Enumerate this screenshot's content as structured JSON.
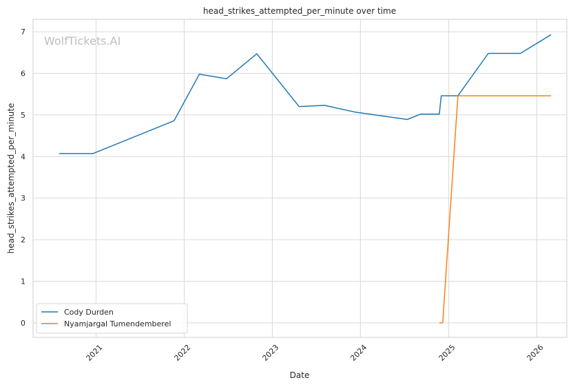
{
  "chart_data": {
    "type": "line",
    "title": "head_strikes_attempted_per_minute over time",
    "xlabel": "Date",
    "ylabel": "head_strikes_attempted_per_minute",
    "watermark": "WolfTickets.AI",
    "x_ticks": [
      "2021",
      "2022",
      "2023",
      "2024",
      "2025",
      "2026"
    ],
    "y_ticks": [
      "0",
      "1",
      "2",
      "3",
      "4",
      "5",
      "6",
      "7"
    ],
    "xlim": [
      "2020-04-15",
      "2026-05-05"
    ],
    "ylim": [
      -0.35,
      7.3
    ],
    "grid": true,
    "legend_position": "lower-left",
    "series": [
      {
        "name": "Cody Durden",
        "color": "#1f77b4",
        "points": [
          {
            "x": "2020-08-01",
            "y": 4.07
          },
          {
            "x": "2020-12-19",
            "y": 4.07
          },
          {
            "x": "2021-11-20",
            "y": 4.86
          },
          {
            "x": "2022-03-05",
            "y": 5.98
          },
          {
            "x": "2022-06-25",
            "y": 5.87
          },
          {
            "x": "2022-10-29",
            "y": 6.47
          },
          {
            "x": "2023-04-22",
            "y": 5.2
          },
          {
            "x": "2023-08-05",
            "y": 5.23
          },
          {
            "x": "2023-12-09",
            "y": 5.07
          },
          {
            "x": "2024-07-13",
            "y": 4.89
          },
          {
            "x": "2024-09-07",
            "y": 5.02
          },
          {
            "x": "2024-11-23",
            "y": 5.02
          },
          {
            "x": "2024-12-01",
            "y": 5.46
          },
          {
            "x": "2025-02-08",
            "y": 5.46
          },
          {
            "x": "2025-06-14",
            "y": 6.48
          },
          {
            "x": "2025-10-25",
            "y": 6.48
          },
          {
            "x": "2026-03-01",
            "y": 6.93
          }
        ]
      },
      {
        "name": "Nyamjargal Tumendemberel",
        "color": "#ff7f0e",
        "points": [
          {
            "x": "2024-11-23",
            "y": 0.0
          },
          {
            "x": "2024-12-07",
            "y": 0.0
          },
          {
            "x": "2025-02-08",
            "y": 5.46
          },
          {
            "x": "2026-03-01",
            "y": 5.46
          }
        ]
      }
    ]
  }
}
